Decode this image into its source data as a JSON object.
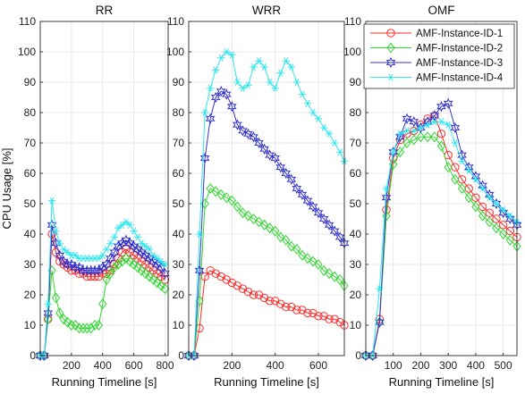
{
  "chart_data": [
    {
      "type": "line",
      "title": "RR",
      "xlabel": "Running Timeline [s]",
      "ylabel": "CPU Usage [%]",
      "xlim": [
        0,
        820
      ],
      "ylim": [
        0,
        110
      ],
      "xticks": [
        200,
        400,
        600,
        800
      ],
      "yticks": [
        0,
        10,
        20,
        30,
        40,
        50,
        60,
        70,
        80,
        90,
        100,
        110
      ],
      "grid": true,
      "series": [
        {
          "name": "AMF-Instance-ID-1",
          "color": "#ff2a2a",
          "marker": "circle",
          "x": [
            0,
            25,
            50,
            75,
            100,
            125,
            150,
            175,
            200,
            225,
            250,
            275,
            300,
            325,
            350,
            375,
            400,
            425,
            450,
            475,
            500,
            525,
            550,
            575,
            600,
            625,
            650,
            675,
            700,
            725,
            750,
            775,
            800
          ],
          "y": [
            0,
            0,
            12,
            40,
            34,
            31,
            30,
            29,
            28,
            28,
            27,
            27,
            26,
            26,
            26,
            26,
            27,
            27,
            28,
            30,
            32,
            34,
            35,
            34,
            33,
            32,
            31,
            30,
            29,
            28,
            27,
            26,
            25
          ]
        },
        {
          "name": "AMF-Instance-ID-2",
          "color": "#2fd62f",
          "marker": "diamond",
          "x": [
            0,
            25,
            50,
            75,
            100,
            125,
            150,
            175,
            200,
            225,
            250,
            275,
            300,
            325,
            350,
            375,
            400,
            425,
            450,
            475,
            500,
            525,
            550,
            575,
            600,
            625,
            650,
            675,
            700,
            725,
            750,
            775,
            800
          ],
          "y": [
            0,
            0,
            12,
            28,
            19,
            14,
            12,
            11,
            10,
            10,
            9,
            9,
            9,
            9,
            10,
            10,
            17,
            25,
            27,
            29,
            30,
            31,
            32,
            31,
            30,
            29,
            28,
            27,
            26,
            25,
            24,
            23,
            22
          ]
        },
        {
          "name": "AMF-Instance-ID-3",
          "color": "#3333cc",
          "marker": "star",
          "x": [
            0,
            25,
            50,
            75,
            100,
            125,
            150,
            175,
            200,
            225,
            250,
            275,
            300,
            325,
            350,
            375,
            400,
            425,
            450,
            475,
            500,
            525,
            550,
            575,
            600,
            625,
            650,
            675,
            700,
            725,
            750,
            775,
            800
          ],
          "y": [
            0,
            0,
            14,
            43,
            37,
            33,
            31,
            30,
            30,
            29,
            29,
            28,
            28,
            28,
            28,
            28,
            29,
            30,
            32,
            34,
            36,
            37,
            38,
            37,
            36,
            35,
            34,
            33,
            32,
            31,
            30,
            29,
            27
          ]
        },
        {
          "name": "AMF-Instance-ID-4",
          "color": "#2ee6ee",
          "marker": "asterisk",
          "x": [
            0,
            25,
            50,
            75,
            100,
            125,
            150,
            175,
            200,
            225,
            250,
            275,
            300,
            325,
            350,
            375,
            400,
            425,
            450,
            475,
            500,
            525,
            550,
            575,
            600,
            625,
            650,
            675,
            700,
            725,
            750,
            775,
            800
          ],
          "y": [
            0,
            0,
            17,
            51,
            41,
            37,
            35,
            34,
            33,
            33,
            32,
            32,
            32,
            32,
            32,
            32,
            33,
            35,
            37,
            39,
            42,
            43,
            44,
            43,
            41,
            39,
            37,
            36,
            35,
            33,
            32,
            31,
            30
          ]
        }
      ]
    },
    {
      "type": "line",
      "title": "WRR",
      "xlabel": "Running Timeline [s]",
      "ylabel": "",
      "xlim": [
        0,
        720
      ],
      "ylim": [
        0,
        110
      ],
      "xticks": [
        200,
        400,
        600
      ],
      "yticks": [
        0,
        10,
        20,
        30,
        40,
        50,
        60,
        70,
        80,
        90,
        100,
        110
      ],
      "grid": true,
      "series": [
        {
          "name": "AMF-Instance-ID-1",
          "color": "#ff2a2a",
          "marker": "circle",
          "x": [
            0,
            25,
            50,
            75,
            100,
            125,
            150,
            175,
            200,
            225,
            250,
            275,
            300,
            325,
            350,
            375,
            400,
            425,
            450,
            475,
            500,
            525,
            550,
            575,
            600,
            625,
            650,
            675,
            700,
            720
          ],
          "y": [
            0,
            0,
            9,
            26,
            28,
            27,
            26,
            25,
            24,
            23,
            22,
            21,
            20,
            20,
            19,
            18,
            18,
            17,
            16,
            16,
            15,
            15,
            14,
            14,
            13,
            13,
            12,
            12,
            11,
            10
          ]
        },
        {
          "name": "AMF-Instance-ID-2",
          "color": "#2fd62f",
          "marker": "diamond",
          "x": [
            0,
            25,
            50,
            75,
            100,
            125,
            150,
            175,
            200,
            225,
            250,
            275,
            300,
            325,
            350,
            375,
            400,
            425,
            450,
            475,
            500,
            525,
            550,
            575,
            600,
            625,
            650,
            675,
            700,
            720
          ],
          "y": [
            0,
            0,
            18,
            50,
            55,
            54,
            53,
            52,
            51,
            49,
            47,
            46,
            45,
            44,
            43,
            42,
            41,
            39,
            38,
            36,
            35,
            33,
            32,
            31,
            30,
            28,
            27,
            26,
            25,
            23
          ]
        },
        {
          "name": "AMF-Instance-ID-3",
          "color": "#3333cc",
          "marker": "star",
          "x": [
            0,
            25,
            50,
            75,
            100,
            125,
            150,
            175,
            200,
            225,
            250,
            275,
            300,
            325,
            350,
            375,
            400,
            425,
            450,
            475,
            500,
            525,
            550,
            575,
            600,
            625,
            650,
            675,
            700,
            720
          ],
          "y": [
            0,
            0,
            28,
            65,
            78,
            85,
            87,
            86,
            82,
            76,
            74,
            73,
            72,
            70,
            68,
            66,
            65,
            62,
            60,
            58,
            55,
            53,
            51,
            49,
            47,
            45,
            43,
            41,
            39,
            37
          ]
        },
        {
          "name": "AMF-Instance-ID-4",
          "color": "#2ee6ee",
          "marker": "asterisk",
          "x": [
            0,
            25,
            50,
            75,
            100,
            125,
            150,
            175,
            200,
            225,
            250,
            275,
            300,
            325,
            350,
            375,
            400,
            425,
            450,
            475,
            500,
            525,
            550,
            575,
            600,
            625,
            650,
            675,
            700,
            720
          ],
          "y": [
            0,
            0,
            40,
            80,
            88,
            94,
            98,
            100,
            99,
            90,
            88,
            89,
            95,
            97,
            95,
            90,
            88,
            93,
            97,
            95,
            90,
            86,
            83,
            80,
            78,
            75,
            73,
            70,
            67,
            64
          ]
        }
      ]
    },
    {
      "type": "line",
      "title": "OMF",
      "xlabel": "Running Timeline [s]",
      "ylabel": "",
      "xlim": [
        0,
        550
      ],
      "ylim": [
        0,
        110
      ],
      "xticks": [
        100,
        200,
        300,
        400,
        500
      ],
      "yticks": [
        0,
        10,
        20,
        30,
        40,
        50,
        60,
        70,
        80,
        90,
        100,
        110
      ],
      "grid": true,
      "legend": "top-right",
      "series": [
        {
          "name": "AMF-Instance-ID-1",
          "color": "#ff2a2a",
          "marker": "circle",
          "x": [
            0,
            25,
            50,
            75,
            100,
            125,
            150,
            175,
            200,
            225,
            250,
            275,
            300,
            325,
            350,
            375,
            400,
            425,
            450,
            475,
            500,
            525,
            550
          ],
          "y": [
            0,
            0,
            12,
            48,
            65,
            71,
            73,
            74,
            76,
            78,
            79,
            73,
            66,
            62,
            58,
            55,
            52,
            49,
            47,
            45,
            43,
            41,
            39
          ]
        },
        {
          "name": "AMF-Instance-ID-2",
          "color": "#2fd62f",
          "marker": "diamond",
          "x": [
            0,
            25,
            50,
            75,
            100,
            125,
            150,
            175,
            200,
            225,
            250,
            275,
            300,
            325,
            350,
            375,
            400,
            425,
            450,
            475,
            500,
            525,
            550
          ],
          "y": [
            0,
            0,
            11,
            46,
            63,
            67,
            70,
            71,
            72,
            72,
            72,
            69,
            62,
            58,
            55,
            52,
            49,
            46,
            44,
            42,
            40,
            38,
            36
          ]
        },
        {
          "name": "AMF-Instance-ID-3",
          "color": "#3333cc",
          "marker": "star",
          "x": [
            0,
            25,
            50,
            75,
            100,
            125,
            150,
            175,
            200,
            225,
            250,
            275,
            300,
            325,
            350,
            375,
            400,
            425,
            450,
            475,
            500,
            525,
            550
          ],
          "y": [
            0,
            0,
            11,
            52,
            67,
            72,
            78,
            77,
            75,
            77,
            79,
            82,
            83,
            75,
            66,
            62,
            59,
            56,
            53,
            50,
            47,
            45,
            43
          ]
        },
        {
          "name": "AMF-Instance-ID-4",
          "color": "#2ee6ee",
          "marker": "asterisk",
          "x": [
            0,
            25,
            50,
            75,
            100,
            125,
            150,
            175,
            200,
            225,
            250,
            275,
            300,
            325,
            350,
            375,
            400,
            425,
            450,
            475,
            500,
            525,
            550
          ],
          "y": [
            0,
            0,
            22,
            55,
            67,
            73,
            74,
            74,
            75,
            76,
            77,
            77,
            76,
            70,
            64,
            61,
            58,
            55,
            52,
            50,
            48,
            46,
            44
          ]
        }
      ]
    }
  ]
}
